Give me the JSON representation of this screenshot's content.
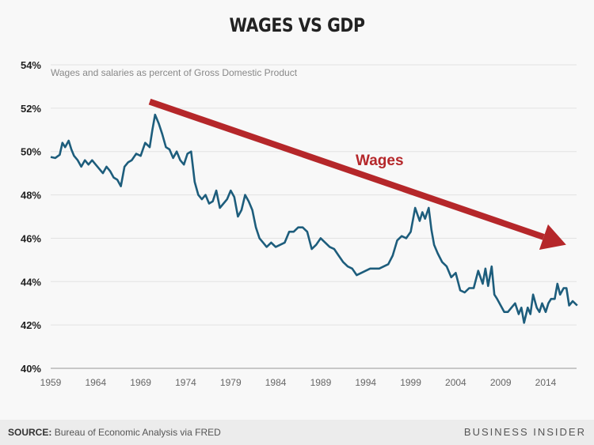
{
  "chart_data": {
    "type": "line",
    "title": "WAGES VS GDP",
    "subtitle": "Wages and salaries as percent of Gross Domestic Product",
    "xlabel": "",
    "ylabel": "",
    "xlim": [
      1959,
      2017.5
    ],
    "ylim": [
      40,
      54
    ],
    "grid": true,
    "x_ticks": [
      "1959",
      "1964",
      "1969",
      "1974",
      "1979",
      "1984",
      "1989",
      "1994",
      "1999",
      "2004",
      "2009",
      "2014"
    ],
    "y_ticks": [
      "40%",
      "42%",
      "44%",
      "46%",
      "48%",
      "50%",
      "52%",
      "54%"
    ],
    "series": [
      {
        "name": "Wages and salaries as percent of GDP",
        "color": "#1d5d7c",
        "x": [
          1959,
          1959.5,
          1960,
          1960.3,
          1960.6,
          1961,
          1961.3,
          1961.6,
          1962,
          1962.4,
          1962.8,
          1963.2,
          1963.6,
          1964,
          1964.4,
          1964.8,
          1965.2,
          1965.6,
          1966,
          1966.4,
          1966.8,
          1967.2,
          1967.6,
          1968,
          1968.5,
          1969,
          1969.5,
          1970,
          1970.3,
          1970.6,
          1971,
          1971.4,
          1971.8,
          1972.2,
          1972.6,
          1973,
          1973.4,
          1973.8,
          1974.2,
          1974.6,
          1975,
          1975.4,
          1975.8,
          1976.2,
          1976.6,
          1977,
          1977.4,
          1977.8,
          1978.2,
          1978.6,
          1979,
          1979.4,
          1979.8,
          1980.2,
          1980.6,
          1981,
          1981.4,
          1981.8,
          1982.2,
          1982.6,
          1983,
          1983.5,
          1984,
          1984.5,
          1985,
          1985.5,
          1986,
          1986.5,
          1987,
          1987.5,
          1988,
          1988.5,
          1989,
          1989.5,
          1990,
          1990.5,
          1991,
          1991.5,
          1992,
          1992.5,
          1993,
          1993.5,
          1994,
          1994.5,
          1995,
          1995.5,
          1996,
          1996.5,
          1997,
          1997.5,
          1998,
          1998.5,
          1999,
          1999.5,
          2000,
          2000.3,
          2000.6,
          2001,
          2001.3,
          2001.6,
          2002,
          2002.5,
          2003,
          2003.5,
          2004,
          2004.5,
          2005,
          2005.5,
          2006,
          2006.5,
          2007,
          2007.3,
          2007.6,
          2008,
          2008.3,
          2008.6,
          2009,
          2009.4,
          2009.8,
          2010.2,
          2010.6,
          2011,
          2011.3,
          2011.6,
          2012,
          2012.3,
          2012.6,
          2013,
          2013.3,
          2013.6,
          2014,
          2014.3,
          2014.6,
          2015,
          2015.3,
          2015.6,
          2016,
          2016.3,
          2016.6,
          2017,
          2017.5
        ],
        "values": [
          49.75,
          49.7,
          49.85,
          50.4,
          50.2,
          50.5,
          50.1,
          49.8,
          49.6,
          49.3,
          49.6,
          49.4,
          49.6,
          49.4,
          49.2,
          49.0,
          49.3,
          49.1,
          48.8,
          48.7,
          48.4,
          49.3,
          49.5,
          49.6,
          49.9,
          49.8,
          50.4,
          50.2,
          51.0,
          51.7,
          51.3,
          50.8,
          50.2,
          50.1,
          49.7,
          50.0,
          49.6,
          49.4,
          49.9,
          50.0,
          48.6,
          48.0,
          47.8,
          48.0,
          47.6,
          47.7,
          48.2,
          47.4,
          47.6,
          47.8,
          48.2,
          47.9,
          47.0,
          47.3,
          48.0,
          47.7,
          47.3,
          46.5,
          46.0,
          45.8,
          45.6,
          45.8,
          45.6,
          45.7,
          45.8,
          46.3,
          46.3,
          46.5,
          46.5,
          46.3,
          45.5,
          45.7,
          46.0,
          45.8,
          45.6,
          45.5,
          45.2,
          44.9,
          44.7,
          44.6,
          44.3,
          44.4,
          44.5,
          44.6,
          44.6,
          44.6,
          44.7,
          44.8,
          45.2,
          45.9,
          46.1,
          46.0,
          46.3,
          47.4,
          46.8,
          47.2,
          46.9,
          47.4,
          46.4,
          45.7,
          45.3,
          44.9,
          44.7,
          44.2,
          44.4,
          43.6,
          43.5,
          43.7,
          43.7,
          44.5,
          43.9,
          44.6,
          43.8,
          44.7,
          43.4,
          43.2,
          42.9,
          42.6,
          42.6,
          42.8,
          43.0,
          42.5,
          42.8,
          42.1,
          42.8,
          42.5,
          43.4,
          42.8,
          42.6,
          43.0,
          42.6,
          43.0,
          43.2,
          43.2,
          43.9,
          43.4,
          43.7,
          43.7,
          42.9,
          43.1,
          42.9
        ]
      }
    ],
    "annotations": [
      {
        "text": "Wages",
        "type": "trend-arrow",
        "from": [
          1970,
          52.3
        ],
        "to": [
          2017.5,
          45.7
        ],
        "color": "#b5272a"
      }
    ]
  },
  "footer": {
    "source_label": "SOURCE:",
    "source_text": "Bureau of Economic Analysis via FRED",
    "brand": "BUSINESS INSIDER"
  }
}
